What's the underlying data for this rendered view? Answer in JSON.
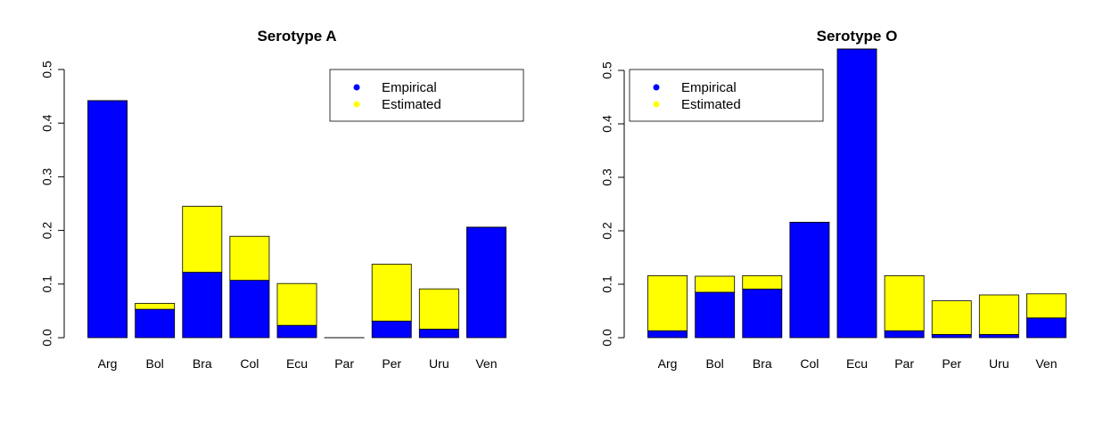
{
  "colors": {
    "empirical": "#0000ff",
    "estimated": "#ffff00",
    "stroke": "#000000"
  },
  "chart_data": [
    {
      "type": "bar",
      "stacked": true,
      "title": "Serotype A",
      "categories": [
        "Arg",
        "Bol",
        "Bra",
        "Col",
        "Ecu",
        "Par",
        "Per",
        "Uru",
        "Ven"
      ],
      "series": [
        {
          "name": "Empirical",
          "values": [
            0.442,
            0.053,
            0.122,
            0.107,
            0.023,
            0.0,
            0.031,
            0.016,
            0.206
          ]
        },
        {
          "name": "Estimated",
          "values": [
            0.0,
            0.011,
            0.123,
            0.082,
            0.078,
            0.0,
            0.106,
            0.075,
            0.0
          ]
        }
      ],
      "ylim": [
        0,
        0.5
      ],
      "yticks": [
        0.0,
        0.1,
        0.2,
        0.3,
        0.4,
        0.5
      ],
      "ytick_labels": [
        "0.0",
        "0.1",
        "0.2",
        "0.3",
        "0.4",
        "0.5"
      ],
      "xlabel": "",
      "ylabel": "",
      "legend": {
        "placement": "top-right",
        "labels": [
          "Empirical",
          "Estimated"
        ]
      }
    },
    {
      "type": "bar",
      "stacked": true,
      "title": "Serotype O",
      "categories": [
        "Arg",
        "Bol",
        "Bra",
        "Col",
        "Ecu",
        "Par",
        "Per",
        "Uru",
        "Ven"
      ],
      "series": [
        {
          "name": "Empirical",
          "values": [
            0.013,
            0.085,
            0.091,
            0.216,
            0.54,
            0.013,
            0.006,
            0.006,
            0.037
          ]
        },
        {
          "name": "Estimated",
          "values": [
            0.103,
            0.03,
            0.025,
            0.0,
            0.0,
            0.103,
            0.063,
            0.074,
            0.045
          ]
        }
      ],
      "ylim": [
        0,
        0.54
      ],
      "yticks": [
        0.0,
        0.1,
        0.2,
        0.3,
        0.4,
        0.5
      ],
      "ytick_labels": [
        "0.0",
        "0.1",
        "0.2",
        "0.3",
        "0.4",
        "0.5"
      ],
      "xlabel": "",
      "ylabel": "",
      "legend": {
        "placement": "top-left",
        "labels": [
          "Empirical",
          "Estimated"
        ]
      }
    }
  ]
}
